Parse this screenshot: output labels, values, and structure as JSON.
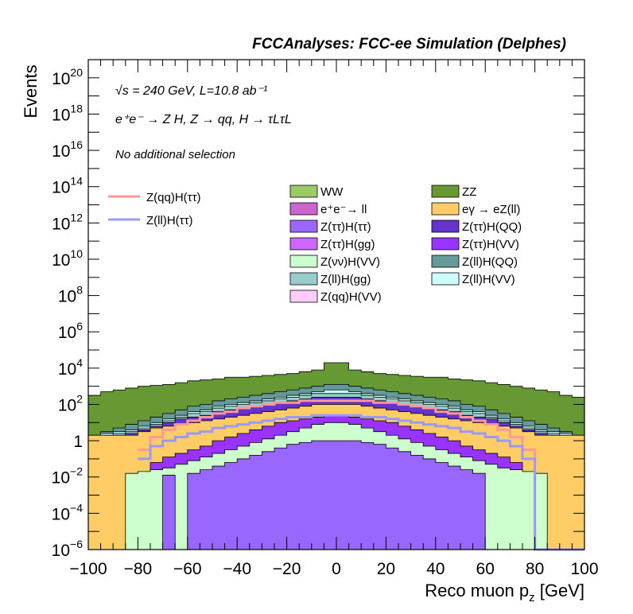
{
  "chart_data": {
    "type": "area",
    "title": "FCCAnalyses: FCC-ee Simulation (Delphes)",
    "xlabel": "Reco muon p",
    "xlabel_sub": "z",
    "xlabel_unit": " [GeV]",
    "ylabel": "Events",
    "xlim": [
      -100,
      100
    ],
    "ylim_log10": [
      -6,
      21
    ],
    "y_scale": "log",
    "xticks": [
      -100,
      -80,
      -60,
      -40,
      -20,
      0,
      20,
      40,
      60,
      80,
      100
    ],
    "yticks": [
      {
        "exp": -6,
        "label": "10",
        "sup": "−6"
      },
      {
        "exp": -4,
        "label": "10",
        "sup": "−4"
      },
      {
        "exp": -2,
        "label": "10",
        "sup": "−2"
      },
      {
        "exp": 0,
        "label": "1",
        "sup": ""
      },
      {
        "exp": 2,
        "label": "10",
        "sup": "2"
      },
      {
        "exp": 4,
        "label": "10",
        "sup": "4"
      },
      {
        "exp": 6,
        "label": "10",
        "sup": "6"
      },
      {
        "exp": 8,
        "label": "10",
        "sup": "8"
      },
      {
        "exp": 10,
        "label": "10",
        "sup": "10"
      },
      {
        "exp": 12,
        "label": "10",
        "sup": "12"
      },
      {
        "exp": 14,
        "label": "10",
        "sup": "14"
      },
      {
        "exp": 16,
        "label": "10",
        "sup": "16"
      },
      {
        "exp": 18,
        "label": "10",
        "sup": "18"
      },
      {
        "exp": 20,
        "label": "10",
        "sup": "20"
      }
    ],
    "annotations": [
      "√s = 240 GeV, L=10.8 ab⁻¹",
      "e⁺e⁻ → Z H, Z → qq, H → τLτL",
      "No additional selection"
    ],
    "legend_lines": [
      {
        "name": "Z(qq)H(ττ)",
        "color": "#ff9999"
      },
      {
        "name": "Z(ll)H(ττ)",
        "color": "#9999ff"
      }
    ],
    "legend_fills": [
      {
        "name": "WW",
        "color": "#99cc66"
      },
      {
        "name": "ZZ",
        "color": "#669933"
      },
      {
        "name": "e⁺e⁻→ ll",
        "color": "#cc66cc"
      },
      {
        "name": "eγ → eZ(ll)",
        "color": "#ffcc66"
      },
      {
        "name": "Z(ττ)H(ττ)",
        "color": "#9966ff"
      },
      {
        "name": "Z(ττ)H(QQ)",
        "color": "#6633cc"
      },
      {
        "name": "Z(ττ)H(gg)",
        "color": "#cc66ff"
      },
      {
        "name": "Z(ττ)H(VV)",
        "color": "#9933ff"
      },
      {
        "name": "Z(νν)H(VV)",
        "color": "#ccffcc"
      },
      {
        "name": "Z(ll)H(QQ)",
        "color": "#669999"
      },
      {
        "name": "Z(ll)H(gg)",
        "color": "#99cccc"
      },
      {
        "name": "Z(ll)H(VV)",
        "color": "#ccffff"
      },
      {
        "name": "Z(qq)H(VV)",
        "color": "#ffccff"
      }
    ],
    "stack_tops_log10": [
      {
        "name": "ZZ",
        "color": "#669933",
        "x": [
          -100,
          -95,
          -90,
          -85,
          -80,
          -75,
          -70,
          -65,
          -60,
          -55,
          -50,
          -45,
          -40,
          -35,
          -30,
          -25,
          -20,
          -15,
          -10,
          -5,
          0,
          5,
          10,
          15,
          20,
          25,
          30,
          35,
          40,
          45,
          50,
          55,
          60,
          65,
          70,
          75,
          80,
          85,
          90,
          95,
          100
        ],
        "y": [
          2.5,
          2.7,
          2.8,
          2.9,
          3.0,
          3.05,
          3.1,
          3.2,
          3.3,
          3.35,
          3.4,
          3.5,
          3.5,
          3.55,
          3.6,
          3.65,
          3.7,
          3.8,
          3.9,
          4.3,
          4.3,
          3.9,
          3.8,
          3.7,
          3.65,
          3.6,
          3.55,
          3.5,
          3.5,
          3.4,
          3.35,
          3.3,
          3.2,
          3.1,
          3.0,
          2.9,
          2.8,
          2.7,
          2.5,
          2.4,
          2.4
        ]
      },
      {
        "name": "Z(ll)H(QQ)",
        "color": "#669999",
        "x": [
          -100,
          -95,
          -90,
          -85,
          -80,
          -75,
          -70,
          -65,
          -60,
          -55,
          -50,
          -45,
          -40,
          -35,
          -30,
          -25,
          -20,
          -15,
          -10,
          -5,
          0,
          5,
          10,
          15,
          20,
          25,
          30,
          35,
          40,
          45,
          50,
          55,
          60,
          65,
          70,
          75,
          80,
          85,
          90,
          95,
          100
        ],
        "y": [
          0.3,
          0.5,
          0.7,
          0.9,
          1.1,
          1.3,
          1.5,
          1.7,
          1.9,
          2.0,
          2.2,
          2.3,
          2.4,
          2.5,
          2.6,
          2.7,
          2.8,
          2.9,
          3.0,
          3.1,
          3.1,
          3.0,
          2.9,
          2.8,
          2.7,
          2.6,
          2.5,
          2.4,
          2.3,
          2.2,
          2.0,
          1.9,
          1.7,
          1.5,
          1.3,
          1.1,
          0.9,
          0.7,
          0.5,
          0.3,
          0.3
        ]
      },
      {
        "name": "Z(ll)H(VV)",
        "color": "#ccffff",
        "x": [
          -100,
          -95,
          -90,
          -85,
          -80,
          -75,
          -70,
          -65,
          -60,
          -55,
          -50,
          -45,
          -40,
          -35,
          -30,
          -25,
          -20,
          -15,
          -10,
          -5,
          0,
          5,
          10,
          15,
          20,
          25,
          30,
          35,
          40,
          45,
          50,
          55,
          60,
          65,
          70,
          75,
          80,
          85,
          90,
          95,
          100
        ],
        "y": [
          0.3,
          0.4,
          0.5,
          0.6,
          0.8,
          1.0,
          1.2,
          1.4,
          1.6,
          1.7,
          1.9,
          2.0,
          2.1,
          2.2,
          2.3,
          2.4,
          2.5,
          2.6,
          2.7,
          2.8,
          2.8,
          2.7,
          2.6,
          2.5,
          2.4,
          2.3,
          2.2,
          2.1,
          2.0,
          1.9,
          1.7,
          1.6,
          1.4,
          1.2,
          1.0,
          0.8,
          0.6,
          0.5,
          0.4,
          0.3,
          0.3
        ]
      },
      {
        "name": "Z(ll)H(gg)",
        "color": "#99cccc",
        "x": [
          -100,
          -95,
          -90,
          -85,
          -80,
          -75,
          -70,
          -65,
          -60,
          -55,
          -50,
          -45,
          -40,
          -35,
          -30,
          -25,
          -20,
          -15,
          -10,
          -5,
          0,
          5,
          10,
          15,
          20,
          25,
          30,
          35,
          40,
          45,
          50,
          55,
          60,
          65,
          70,
          75,
          80,
          85,
          90,
          95,
          100
        ],
        "y": [
          0.2,
          0.3,
          0.4,
          0.5,
          0.7,
          0.9,
          1.1,
          1.3,
          1.5,
          1.6,
          1.8,
          1.9,
          2.0,
          2.1,
          2.2,
          2.3,
          2.4,
          2.5,
          2.6,
          2.6,
          2.6,
          2.6,
          2.5,
          2.4,
          2.3,
          2.2,
          2.1,
          2.0,
          1.9,
          1.8,
          1.6,
          1.5,
          1.3,
          1.1,
          0.9,
          0.7,
          0.5,
          0.4,
          0.3,
          0.2,
          0.2
        ]
      },
      {
        "name": "Z(ττ)H(QQ)",
        "color": "#6633cc",
        "x": [
          -100,
          -95,
          -90,
          -85,
          -80,
          -75,
          -70,
          -65,
          -60,
          -55,
          -50,
          -45,
          -40,
          -35,
          -30,
          -25,
          -20,
          -15,
          -10,
          -5,
          0,
          5,
          10,
          15,
          20,
          25,
          30,
          35,
          40,
          45,
          50,
          55,
          60,
          65,
          70,
          75,
          80,
          85,
          90,
          95,
          100
        ],
        "y": [
          0.1,
          0.2,
          0.3,
          0.4,
          0.6,
          0.8,
          1.0,
          1.2,
          1.3,
          1.4,
          1.6,
          1.7,
          1.8,
          1.9,
          2.0,
          2.1,
          2.2,
          2.3,
          2.4,
          2.4,
          2.4,
          2.4,
          2.3,
          2.2,
          2.1,
          2.0,
          1.9,
          1.8,
          1.7,
          1.6,
          1.4,
          1.3,
          1.2,
          1.0,
          0.8,
          0.6,
          0.4,
          0.3,
          0.2,
          0.1,
          0.1
        ]
      },
      {
        "name": "eγ → eZ(ll)",
        "color": "#ffcc66",
        "x": [
          -100,
          -95,
          -90,
          -85,
          -80,
          -75,
          -70,
          -65,
          -60,
          -55,
          -50,
          -45,
          -40,
          -35,
          -30,
          -25,
          -20,
          -15,
          -10,
          -5,
          0,
          5,
          10,
          15,
          20,
          25,
          30,
          35,
          40,
          45,
          50,
          55,
          60,
          65,
          70,
          75,
          80,
          85,
          90,
          95,
          100
        ],
        "y": [
          0.3,
          0.3,
          0.3,
          0.3,
          0.5,
          0.7,
          0.8,
          0.9,
          1.0,
          1.1,
          1.2,
          1.3,
          1.4,
          1.5,
          1.6,
          1.7,
          1.8,
          1.9,
          2.0,
          2.0,
          2.0,
          2.0,
          1.9,
          1.8,
          1.7,
          1.6,
          1.5,
          1.4,
          1.3,
          1.2,
          1.1,
          1.0,
          0.9,
          0.8,
          0.7,
          0.5,
          0.3,
          0.3,
          0.3,
          0.3,
          0.3
        ]
      },
      {
        "name": "Z(ττ)H(VV)",
        "color": "#9933ff",
        "x": [
          -100,
          -95,
          -90,
          -85,
          -80,
          -75,
          -70,
          -65,
          -60,
          -55,
          -50,
          -45,
          -40,
          -35,
          -30,
          -25,
          -20,
          -15,
          -10,
          -5,
          0,
          5,
          10,
          15,
          20,
          25,
          30,
          35,
          40,
          45,
          50,
          55,
          60,
          65,
          70,
          75,
          80,
          85,
          90,
          95,
          100
        ],
        "y": [
          -6,
          -6,
          -6,
          -6,
          -6,
          -1.2,
          -0.9,
          -0.7,
          -0.5,
          -0.3,
          0.0,
          0.2,
          0.4,
          0.6,
          0.8,
          1.0,
          1.1,
          1.2,
          1.3,
          1.4,
          1.4,
          1.3,
          1.2,
          1.1,
          1.0,
          0.8,
          0.6,
          0.4,
          0.2,
          0.0,
          -0.3,
          -0.5,
          -0.7,
          -0.9,
          -1.2,
          -6,
          -6,
          -6,
          -6,
          -6,
          -6
        ]
      },
      {
        "name": "Z(νν)H(VV)",
        "color": "#ccffcc",
        "x": [
          -100,
          -95,
          -90,
          -85,
          -80,
          -75,
          -70,
          -65,
          -60,
          -55,
          -50,
          -45,
          -40,
          -35,
          -30,
          -25,
          -20,
          -15,
          -10,
          -5,
          0,
          5,
          10,
          15,
          20,
          25,
          30,
          35,
          40,
          45,
          50,
          55,
          60,
          65,
          70,
          75,
          80,
          85,
          90,
          95,
          100
        ],
        "y": [
          -6,
          -6,
          -6,
          -1.8,
          -1.7,
          -1.6,
          -1.5,
          -1.3,
          -1.1,
          -0.9,
          -0.7,
          -0.5,
          -0.3,
          -0.1,
          0.1,
          0.3,
          0.5,
          0.7,
          0.9,
          1.0,
          1.0,
          0.9,
          0.7,
          0.5,
          0.3,
          0.1,
          -0.1,
          -0.3,
          -0.5,
          -0.7,
          -0.9,
          -1.1,
          -1.3,
          -1.5,
          -1.6,
          -1.7,
          -1.8,
          -6,
          -6,
          -6,
          -6
        ]
      },
      {
        "name": "Z(ττ)H(ττ)",
        "color": "#9966ff",
        "x": [
          -100,
          -95,
          -90,
          -85,
          -80,
          -75,
          -70,
          -65,
          -60,
          -55,
          -50,
          -45,
          -40,
          -35,
          -30,
          -25,
          -20,
          -15,
          -10,
          -5,
          0,
          5,
          10,
          15,
          20,
          25,
          30,
          35,
          40,
          45,
          50,
          55,
          60,
          65,
          70,
          75,
          80,
          85,
          90,
          95,
          100
        ],
        "y": [
          -6,
          -6,
          -6,
          -6,
          -6,
          -6,
          -1.9,
          -6,
          -1.8,
          -1.6,
          -1.4,
          -1.2,
          -1.0,
          -0.8,
          -0.6,
          -0.4,
          -0.2,
          -0.1,
          0.0,
          0.0,
          0.0,
          0.0,
          -0.1,
          -0.2,
          -0.4,
          -0.6,
          -0.8,
          -1.0,
          -1.2,
          -1.4,
          -1.6,
          -1.8,
          -6,
          -6,
          -6,
          -6,
          -6,
          -6,
          -6,
          -6,
          -6
        ]
      }
    ],
    "line_series": [
      {
        "name": "Z(qq)H(ττ)",
        "color": "#ff9999",
        "x": [
          -80,
          -75,
          -70,
          -65,
          -60,
          -55,
          -50,
          -45,
          -40,
          -35,
          -30,
          -25,
          -20,
          -15,
          -10,
          -5,
          0,
          5,
          10,
          15,
          20,
          25,
          30,
          35,
          40,
          45,
          50,
          55,
          60,
          65,
          70,
          75,
          80
        ],
        "y": [
          -0.5,
          0.2,
          0.6,
          0.9,
          1.1,
          1.3,
          1.5,
          1.6,
          1.8,
          1.9,
          2.0,
          2.1,
          2.1,
          2.2,
          2.2,
          2.2,
          2.2,
          2.2,
          2.2,
          2.1,
          2.1,
          2.0,
          1.9,
          1.8,
          1.6,
          1.5,
          1.3,
          1.1,
          0.9,
          0.6,
          0.2,
          -0.5,
          -6
        ]
      },
      {
        "name": "Z(ll)H(ττ)",
        "color": "#9999ff",
        "x": [
          -80,
          -75,
          -70,
          -65,
          -60,
          -55,
          -50,
          -45,
          -40,
          -35,
          -30,
          -25,
          -20,
          -15,
          -10,
          -5,
          0,
          5,
          10,
          15,
          20,
          25,
          30,
          35,
          40,
          45,
          50,
          55,
          60,
          65,
          70,
          75,
          80
        ],
        "y": [
          -1.0,
          -0.3,
          0.0,
          0.2,
          0.4,
          0.5,
          0.7,
          0.8,
          0.9,
          1.0,
          1.1,
          1.2,
          1.3,
          1.3,
          1.4,
          1.4,
          1.4,
          1.4,
          1.3,
          1.3,
          1.2,
          1.1,
          1.0,
          0.9,
          0.8,
          0.7,
          0.5,
          0.4,
          0.2,
          0.0,
          -0.3,
          -1.0,
          -6
        ]
      }
    ]
  }
}
